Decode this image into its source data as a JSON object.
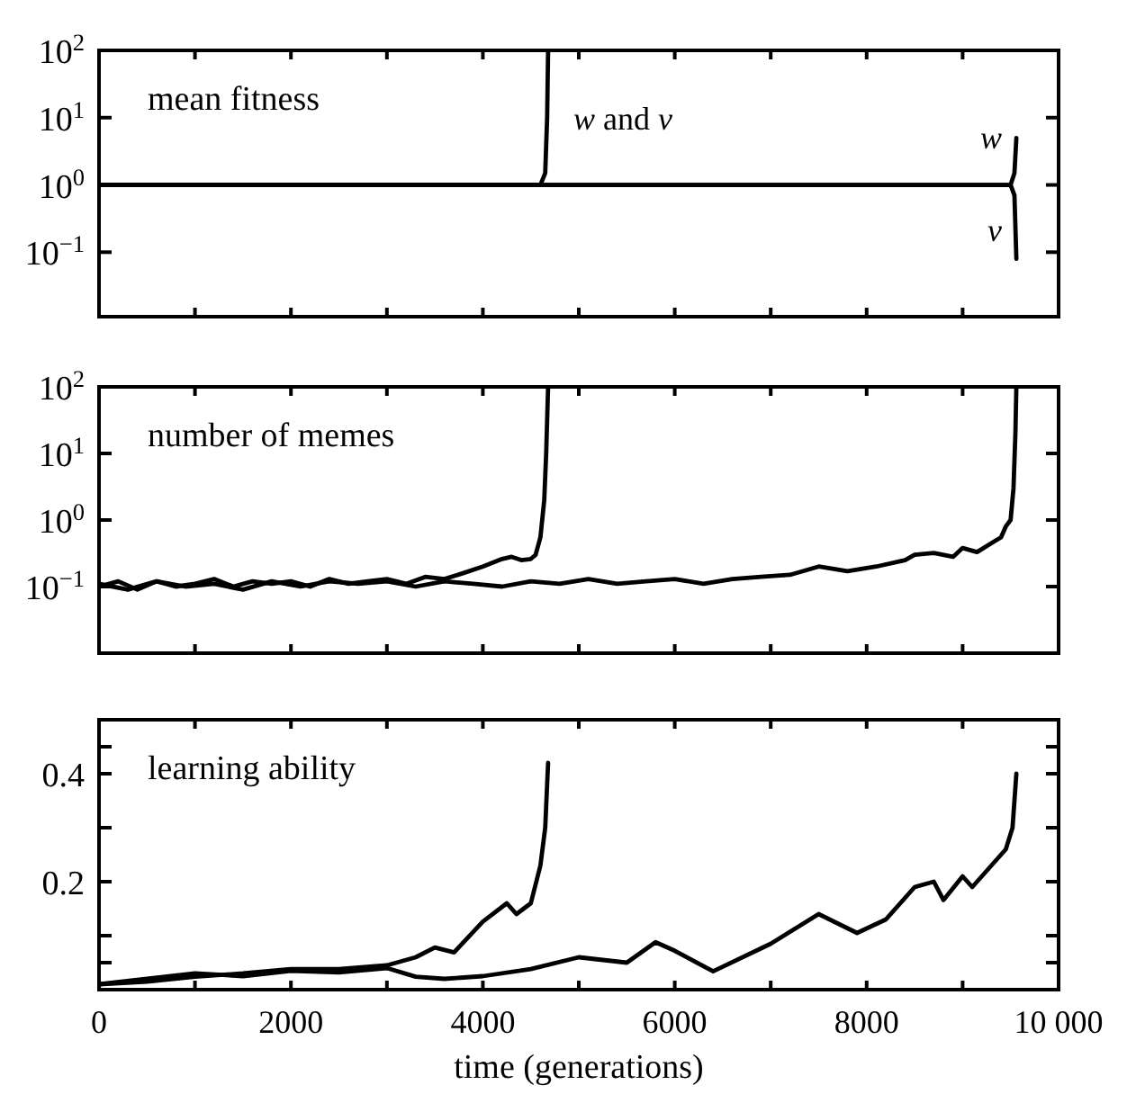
{
  "chart_data": [
    {
      "type": "line",
      "title": "mean fitness",
      "log": "y",
      "legend": "right",
      "xlim": [
        0,
        10000
      ],
      "ylim": [
        0.011,
        100
      ],
      "tick_labels": "y",
      "xticks": [
        0,
        1000,
        2000,
        3000,
        4000,
        5000,
        6000,
        7000,
        8000,
        9000,
        10000
      ],
      "yticks": [
        {
          "value": 0.1,
          "label": "10$^{−1}$"
        },
        {
          "value": 1,
          "label": "10$^{0}$"
        },
        {
          "value": 10,
          "label": "10$^{1}$"
        },
        {
          "value": 100,
          "label": "10$^{2}$"
        }
      ],
      "series": [
        {
          "name": "w and v",
          "color": "#000000",
          "x": [
            0,
            1000,
            2000,
            3000,
            4000,
            4600,
            4650,
            4670,
            4680
          ],
          "values": [
            1,
            1,
            1,
            1,
            1,
            1,
            1.5,
            10,
            100
          ]
        },
        {
          "name": "w",
          "color": "#000000",
          "x": [
            0,
            2000,
            4000,
            6000,
            8000,
            9000,
            9500,
            9540,
            9560
          ],
          "values": [
            1,
            1,
            1,
            1,
            1,
            1,
            1,
            1.5,
            5
          ]
        },
        {
          "name": "v",
          "color": "#000000",
          "x": [
            0,
            2000,
            4000,
            6000,
            8000,
            9000,
            9500,
            9540,
            9560
          ],
          "values": [
            1,
            1,
            1,
            1,
            1,
            1,
            1,
            0.7,
            0.08
          ]
        }
      ]
    },
    {
      "type": "line",
      "title": "number of memes",
      "log": "y",
      "xlim": [
        0,
        10000
      ],
      "ylim": [
        0.01,
        100
      ],
      "tick_labels": "y",
      "xticks": [
        0,
        1000,
        2000,
        3000,
        4000,
        5000,
        6000,
        7000,
        8000,
        9000,
        10000
      ],
      "yticks": [
        {
          "value": 0.1,
          "label": "10$^{−1}$"
        },
        {
          "value": 1,
          "label": "10$^{0}$"
        },
        {
          "value": 10,
          "label": "10$^{1}$"
        },
        {
          "value": 100,
          "label": "10$^{2}$"
        }
      ],
      "series": [
        {
          "color": "#000000",
          "x": [
            0,
            200,
            400,
            600,
            800,
            1000,
            1200,
            1400,
            1600,
            1800,
            2000,
            2200,
            2400,
            2600,
            2800,
            3000,
            3200,
            3400,
            3600,
            3800,
            4000,
            4200,
            4300,
            4400,
            4500,
            4550,
            4600,
            4640,
            4660,
            4680
          ],
          "values": [
            0.1,
            0.12,
            0.09,
            0.12,
            0.1,
            0.11,
            0.13,
            0.1,
            0.12,
            0.11,
            0.12,
            0.1,
            0.13,
            0.11,
            0.12,
            0.13,
            0.11,
            0.14,
            0.13,
            0.16,
            0.2,
            0.26,
            0.28,
            0.25,
            0.26,
            0.3,
            0.55,
            2,
            10,
            100
          ]
        },
        {
          "color": "#000000",
          "x": [
            0,
            300,
            600,
            900,
            1200,
            1500,
            1800,
            2100,
            2400,
            2700,
            3000,
            3300,
            3600,
            3900,
            4200,
            4500,
            4800,
            5100,
            5400,
            5700,
            6000,
            6300,
            6600,
            6900,
            7200,
            7500,
            7800,
            8100,
            8400,
            8500,
            8700,
            8900,
            9000,
            9150,
            9300,
            9400,
            9450,
            9500,
            9530,
            9550,
            9560
          ],
          "values": [
            0.11,
            0.09,
            0.12,
            0.1,
            0.11,
            0.09,
            0.12,
            0.1,
            0.12,
            0.11,
            0.12,
            0.1,
            0.12,
            0.11,
            0.1,
            0.12,
            0.11,
            0.13,
            0.11,
            0.12,
            0.13,
            0.11,
            0.13,
            0.14,
            0.15,
            0.2,
            0.17,
            0.2,
            0.25,
            0.3,
            0.32,
            0.28,
            0.38,
            0.33,
            0.45,
            0.55,
            0.8,
            1.0,
            3,
            20,
            100
          ]
        }
      ]
    },
    {
      "type": "line",
      "title": "learning ability",
      "xlim": [
        0,
        10000
      ],
      "ylim": [
        0,
        0.5
      ],
      "xlabel": "time (generations)",
      "xticks": [
        0,
        {
          "value": 1000,
          "label": null
        },
        2000,
        {
          "value": 3000,
          "label": null
        },
        4000,
        {
          "value": 5000,
          "label": null
        },
        6000,
        {
          "value": 7000,
          "label": null
        },
        8000,
        {
          "value": 9000,
          "label": null
        },
        {
          "value": 10000,
          "label": "10 000"
        }
      ],
      "yticks": [
        {
          "value": 0.05,
          "label": null
        },
        {
          "value": 0.1,
          "label": null
        },
        0.2,
        {
          "value": 0.3,
          "label": null
        },
        0.4,
        {
          "value": 0.45,
          "label": null
        }
      ],
      "series": [
        {
          "color": "#000000",
          "x": [
            0,
            500,
            1000,
            1500,
            2000,
            2500,
            3000,
            3300,
            3500,
            3700,
            4000,
            4250,
            4350,
            4500,
            4600,
            4650,
            4680
          ],
          "values": [
            0.01,
            0.015,
            0.024,
            0.03,
            0.038,
            0.038,
            0.045,
            0.06,
            0.078,
            0.069,
            0.126,
            0.16,
            0.14,
            0.16,
            0.23,
            0.3,
            0.42
          ]
        },
        {
          "color": "#000000",
          "x": [
            0,
            500,
            1000,
            1500,
            2000,
            2500,
            3000,
            3300,
            3600,
            4000,
            4500,
            5000,
            5500,
            5800,
            6000,
            6400,
            7000,
            7500,
            7900,
            8200,
            8500,
            8700,
            8800,
            9000,
            9100,
            9300,
            9450,
            9520,
            9560
          ],
          "values": [
            0.01,
            0.02,
            0.03,
            0.025,
            0.035,
            0.032,
            0.04,
            0.024,
            0.02,
            0.025,
            0.038,
            0.06,
            0.05,
            0.088,
            0.072,
            0.034,
            0.085,
            0.14,
            0.105,
            0.13,
            0.19,
            0.2,
            0.166,
            0.21,
            0.19,
            0.23,
            0.26,
            0.3,
            0.4
          ]
        }
      ]
    }
  ]
}
